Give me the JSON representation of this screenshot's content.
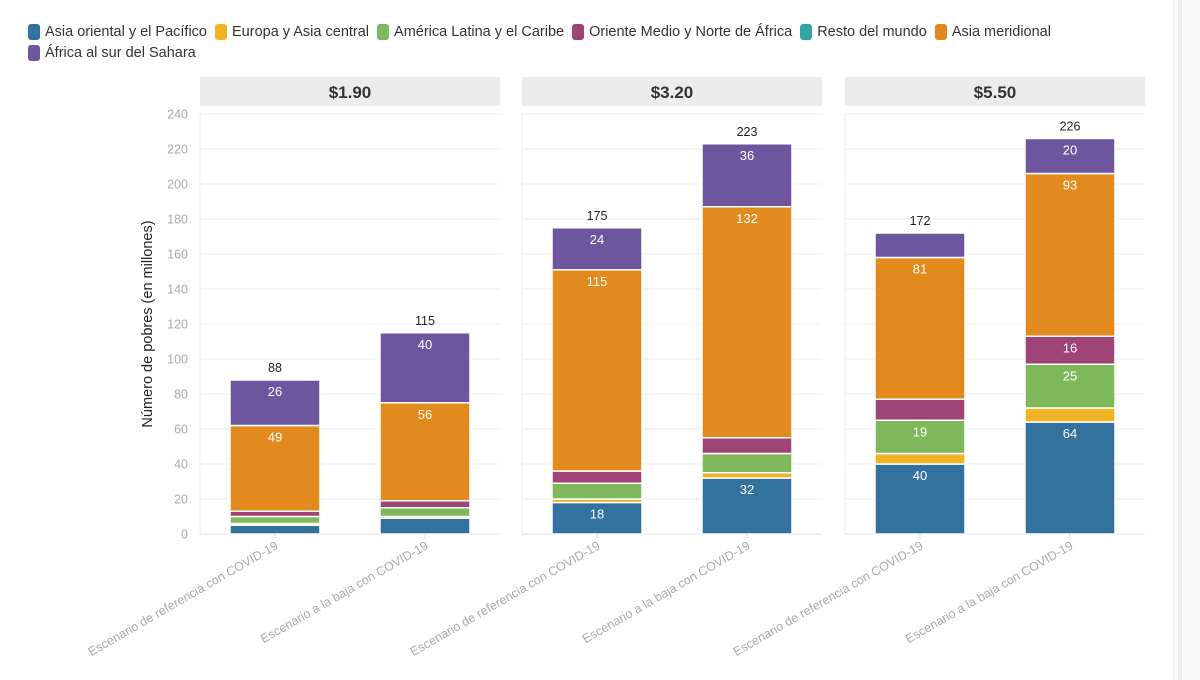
{
  "chart_data": {
    "type": "bar",
    "stacked": true,
    "title": "",
    "ylabel": "Número de pobres (en millones)",
    "xlabel": "",
    "ylim": [
      0,
      240
    ],
    "yticks": [
      0,
      20,
      40,
      60,
      80,
      100,
      120,
      140,
      160,
      180,
      200,
      220,
      240
    ],
    "grid": true,
    "legend_position": "top-left",
    "series": [
      {
        "name": "Asia oriental y el Pacífico",
        "color": "#33729f"
      },
      {
        "name": "Europa y Asia central",
        "color": "#f0b323"
      },
      {
        "name": "América Latina y el Caribe",
        "color": "#7fb75b"
      },
      {
        "name": "Oriente Medio y Norte de África",
        "color": "#9e4476"
      },
      {
        "name": "Resto del mundo",
        "color": "#34a3a3"
      },
      {
        "name": "Asia meridional",
        "color": "#e38a1e"
      },
      {
        "name": "África al sur del Sahara",
        "color": "#6e569e"
      }
    ],
    "panels": [
      {
        "title": "$1.90",
        "categories": [
          "Escenario de referencia con COVID-19",
          "Escenario a la baja con COVID-19"
        ],
        "totals": [
          88,
          115
        ],
        "values": [
          [
            5,
            1,
            4,
            3,
            0,
            49,
            26
          ],
          [
            9,
            1,
            5,
            4,
            0,
            56,
            40
          ]
        ],
        "labels": [
          [
            null,
            null,
            null,
            null,
            null,
            "49",
            "26"
          ],
          [
            null,
            null,
            null,
            null,
            null,
            "56",
            "40"
          ]
        ]
      },
      {
        "title": "$3.20",
        "categories": [
          "Escenario de referencia con COVID-19",
          "Escenario a la baja con COVID-19"
        ],
        "totals": [
          175,
          223
        ],
        "values": [
          [
            18,
            2,
            9,
            7,
            0,
            115,
            24
          ],
          [
            32,
            3,
            11,
            9,
            0,
            132,
            36
          ]
        ],
        "labels": [
          [
            "18",
            null,
            null,
            null,
            null,
            "115",
            "24"
          ],
          [
            "32",
            null,
            null,
            null,
            null,
            "132",
            "36"
          ]
        ]
      },
      {
        "title": "$5.50",
        "categories": [
          "Escenario de referencia con COVID-19",
          "Escenario a la baja con COVID-19"
        ],
        "totals": [
          172,
          226
        ],
        "values": [
          [
            40,
            6,
            19,
            12,
            0,
            81,
            14
          ],
          [
            64,
            8,
            25,
            16,
            0,
            93,
            20
          ]
        ],
        "labels": [
          [
            "40",
            null,
            "19",
            null,
            null,
            "81",
            null
          ],
          [
            "64",
            null,
            "25",
            "16",
            null,
            "93",
            "20"
          ]
        ]
      }
    ]
  }
}
